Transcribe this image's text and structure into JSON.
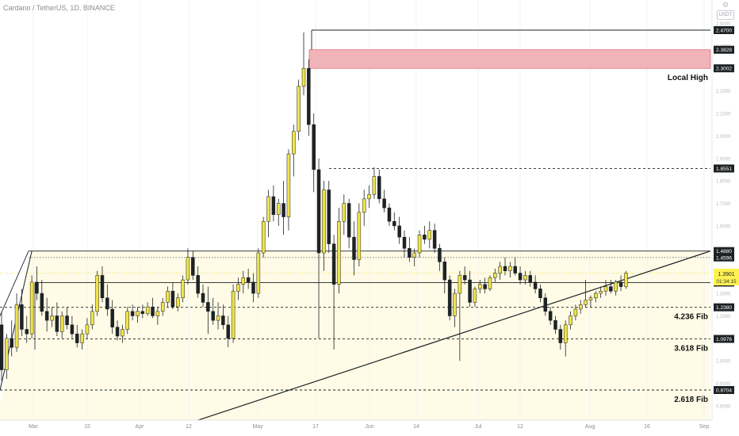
{
  "header": {
    "title": "Cardano / TetherUS, 1D, BINANCE",
    "settings_icon": "gear-icon",
    "currency_badge": "USDT"
  },
  "chart_data": {
    "type": "candlestick",
    "symbol": "Cardano / TetherUS",
    "interval": "1D",
    "exchange": "BINANCE",
    "ylim": [
      0.77,
      2.54
    ],
    "y_ticks": [
      "2.5000",
      "2.4000",
      "2.3000",
      "2.2000",
      "2.1000",
      "2.0000",
      "1.9000",
      "1.8000",
      "1.7000",
      "1.6000",
      "1.5000",
      "1.4000",
      "1.3000",
      "1.2000",
      "1.1000",
      "1.0000",
      "0.9000",
      "0.8000"
    ],
    "x_ticks": [
      "Mar",
      "15",
      "Apr",
      "12",
      "May",
      "17",
      "Jun",
      "14",
      "Jul",
      "12",
      "Aug",
      "16",
      "Sep"
    ],
    "colors": {
      "up": "#f0e34a",
      "down": "#1e2224",
      "zone": "#f0b3b8",
      "fill": "#fffbe6",
      "current_price": "#fdf250"
    },
    "candles_ohlc": [
      [
        1.16,
        1.22,
        0.91,
        0.96
      ],
      [
        0.96,
        1.12,
        0.92,
        1.1
      ],
      [
        1.1,
        1.18,
        1.02,
        1.06
      ],
      [
        1.06,
        1.3,
        1.04,
        1.25
      ],
      [
        1.25,
        1.32,
        1.11,
        1.14
      ],
      [
        1.14,
        1.2,
        1.08,
        1.12
      ],
      [
        1.12,
        1.38,
        1.1,
        1.35
      ],
      [
        1.35,
        1.42,
        1.27,
        1.3
      ],
      [
        1.3,
        1.36,
        1.2,
        1.22
      ],
      [
        1.22,
        1.28,
        1.13,
        1.18
      ],
      [
        1.18,
        1.24,
        1.15,
        1.2
      ],
      [
        1.2,
        1.26,
        1.11,
        1.13
      ],
      [
        1.13,
        1.22,
        1.1,
        1.2
      ],
      [
        1.2,
        1.24,
        1.14,
        1.16
      ],
      [
        1.16,
        1.2,
        1.1,
        1.12
      ],
      [
        1.12,
        1.16,
        1.06,
        1.08
      ],
      [
        1.08,
        1.14,
        1.05,
        1.12
      ],
      [
        1.12,
        1.19,
        1.1,
        1.16
      ],
      [
        1.16,
        1.25,
        1.14,
        1.22
      ],
      [
        1.22,
        1.4,
        1.2,
        1.38
      ],
      [
        1.38,
        1.42,
        1.26,
        1.28
      ],
      [
        1.28,
        1.34,
        1.2,
        1.23
      ],
      [
        1.23,
        1.27,
        1.12,
        1.15
      ],
      [
        1.15,
        1.18,
        1.09,
        1.11
      ],
      [
        1.11,
        1.16,
        1.08,
        1.14
      ],
      [
        1.14,
        1.24,
        1.12,
        1.22
      ],
      [
        1.22,
        1.25,
        1.18,
        1.2
      ],
      [
        1.2,
        1.24,
        1.17,
        1.22
      ],
      [
        1.22,
        1.25,
        1.19,
        1.21
      ],
      [
        1.21,
        1.26,
        1.2,
        1.24
      ],
      [
        1.24,
        1.28,
        1.19,
        1.2
      ],
      [
        1.2,
        1.24,
        1.16,
        1.22
      ],
      [
        1.22,
        1.28,
        1.2,
        1.26
      ],
      [
        1.26,
        1.33,
        1.24,
        1.31
      ],
      [
        1.31,
        1.35,
        1.23,
        1.24
      ],
      [
        1.24,
        1.3,
        1.22,
        1.28
      ],
      [
        1.28,
        1.38,
        1.26,
        1.36
      ],
      [
        1.36,
        1.5,
        1.34,
        1.46
      ],
      [
        1.46,
        1.49,
        1.36,
        1.38
      ],
      [
        1.38,
        1.42,
        1.28,
        1.3
      ],
      [
        1.3,
        1.34,
        1.24,
        1.26
      ],
      [
        1.26,
        1.33,
        1.12,
        1.22
      ],
      [
        1.22,
        1.28,
        1.16,
        1.18
      ],
      [
        1.18,
        1.26,
        1.14,
        1.2
      ],
      [
        1.2,
        1.25,
        1.14,
        1.16
      ],
      [
        1.16,
        1.2,
        1.06,
        1.1
      ],
      [
        1.1,
        1.34,
        1.08,
        1.31
      ],
      [
        1.31,
        1.37,
        1.27,
        1.34
      ],
      [
        1.34,
        1.4,
        1.3,
        1.37
      ],
      [
        1.37,
        1.41,
        1.32,
        1.35
      ],
      [
        1.35,
        1.39,
        1.26,
        1.3
      ],
      [
        1.3,
        1.5,
        1.28,
        1.48
      ],
      [
        1.48,
        1.64,
        1.46,
        1.62
      ],
      [
        1.62,
        1.76,
        1.55,
        1.73
      ],
      [
        1.73,
        1.78,
        1.62,
        1.65
      ],
      [
        1.65,
        1.72,
        1.6,
        1.7
      ],
      [
        1.7,
        1.8,
        1.56,
        1.64
      ],
      [
        1.64,
        1.94,
        1.58,
        1.92
      ],
      [
        1.92,
        2.05,
        1.82,
        2.02
      ],
      [
        2.02,
        2.25,
        1.98,
        2.22
      ],
      [
        2.22,
        2.46,
        2.18,
        2.3
      ],
      [
        2.3,
        2.34,
        2.0,
        2.05
      ],
      [
        2.05,
        2.1,
        1.75,
        1.85
      ],
      [
        1.85,
        1.9,
        1.1,
        1.48
      ],
      [
        1.48,
        1.8,
        1.4,
        1.76
      ],
      [
        1.76,
        1.8,
        1.48,
        1.52
      ],
      [
        1.52,
        1.56,
        1.05,
        1.34
      ],
      [
        1.34,
        1.68,
        1.3,
        1.62
      ],
      [
        1.62,
        1.74,
        1.56,
        1.7
      ],
      [
        1.7,
        1.72,
        1.5,
        1.55
      ],
      [
        1.55,
        1.62,
        1.38,
        1.45
      ],
      [
        1.45,
        1.7,
        1.42,
        1.66
      ],
      [
        1.66,
        1.76,
        1.6,
        1.72
      ],
      [
        1.72,
        1.78,
        1.68,
        1.74
      ],
      [
        1.74,
        1.86,
        1.72,
        1.82
      ],
      [
        1.82,
        1.85,
        1.7,
        1.72
      ],
      [
        1.72,
        1.76,
        1.66,
        1.68
      ],
      [
        1.68,
        1.7,
        1.6,
        1.62
      ],
      [
        1.62,
        1.66,
        1.58,
        1.6
      ],
      [
        1.6,
        1.64,
        1.52,
        1.55
      ],
      [
        1.55,
        1.58,
        1.46,
        1.5
      ],
      [
        1.5,
        1.55,
        1.44,
        1.46
      ],
      [
        1.46,
        1.5,
        1.42,
        1.48
      ],
      [
        1.48,
        1.58,
        1.46,
        1.56
      ],
      [
        1.56,
        1.6,
        1.52,
        1.54
      ],
      [
        1.54,
        1.62,
        1.5,
        1.58
      ],
      [
        1.58,
        1.61,
        1.48,
        1.5
      ],
      [
        1.5,
        1.52,
        1.4,
        1.44
      ],
      [
        1.44,
        1.46,
        1.3,
        1.36
      ],
      [
        1.36,
        1.38,
        1.18,
        1.2
      ],
      [
        1.2,
        1.32,
        1.15,
        1.3
      ],
      [
        1.3,
        1.4,
        1.0,
        1.38
      ],
      [
        1.38,
        1.42,
        1.34,
        1.36
      ],
      [
        1.36,
        1.4,
        1.24,
        1.26
      ],
      [
        1.26,
        1.33,
        1.24,
        1.32
      ],
      [
        1.32,
        1.36,
        1.3,
        1.34
      ],
      [
        1.34,
        1.37,
        1.3,
        1.32
      ],
      [
        1.32,
        1.38,
        1.31,
        1.37
      ],
      [
        1.37,
        1.41,
        1.35,
        1.39
      ],
      [
        1.39,
        1.44,
        1.36,
        1.42
      ],
      [
        1.42,
        1.46,
        1.38,
        1.4
      ],
      [
        1.4,
        1.44,
        1.37,
        1.42
      ],
      [
        1.42,
        1.46,
        1.38,
        1.39
      ],
      [
        1.39,
        1.42,
        1.34,
        1.36
      ],
      [
        1.36,
        1.4,
        1.34,
        1.38
      ],
      [
        1.38,
        1.4,
        1.33,
        1.35
      ],
      [
        1.35,
        1.38,
        1.3,
        1.32
      ],
      [
        1.32,
        1.34,
        1.26,
        1.28
      ],
      [
        1.28,
        1.3,
        1.2,
        1.22
      ],
      [
        1.22,
        1.24,
        1.16,
        1.18
      ],
      [
        1.18,
        1.2,
        1.12,
        1.14
      ],
      [
        1.14,
        1.16,
        1.05,
        1.08
      ],
      [
        1.08,
        1.18,
        1.02,
        1.16
      ],
      [
        1.16,
        1.22,
        1.14,
        1.2
      ],
      [
        1.2,
        1.25,
        1.18,
        1.23
      ],
      [
        1.23,
        1.27,
        1.21,
        1.25
      ],
      [
        1.25,
        1.36,
        1.24,
        1.27
      ],
      [
        1.27,
        1.29,
        1.24,
        1.28
      ],
      [
        1.28,
        1.31,
        1.26,
        1.3
      ],
      [
        1.3,
        1.33,
        1.28,
        1.31
      ],
      [
        1.31,
        1.36,
        1.29,
        1.33
      ],
      [
        1.33,
        1.36,
        1.3,
        1.31
      ],
      [
        1.31,
        1.36,
        1.29,
        1.35
      ],
      [
        1.35,
        1.38,
        1.31,
        1.33
      ],
      [
        1.33,
        1.4,
        1.32,
        1.39
      ]
    ],
    "levels": [
      {
        "price": "2.4700",
        "label": "",
        "style": "solid"
      },
      {
        "price": "2.3828",
        "label": "",
        "style": "zone-top"
      },
      {
        "price": "2.3002",
        "label": "Local High",
        "style": "zone-bottom"
      },
      {
        "price": "1.8551",
        "label": "",
        "style": "dashed"
      },
      {
        "price": "1.4880",
        "label": "",
        "style": "solid"
      },
      {
        "price": "1.4596",
        "label": "",
        "style": "dotted"
      },
      {
        "price": "1.3480",
        "label": "",
        "style": "solid"
      },
      {
        "price": "1.2380",
        "label": "4.236 Fib",
        "style": "dashed"
      },
      {
        "price": "1.0976",
        "label": "3.618 Fib",
        "style": "dashed"
      },
      {
        "price": "0.8704",
        "label": "2.618 Fib",
        "style": "dashed"
      }
    ],
    "current_price": "1.3901",
    "countdown": "01:34:15"
  }
}
